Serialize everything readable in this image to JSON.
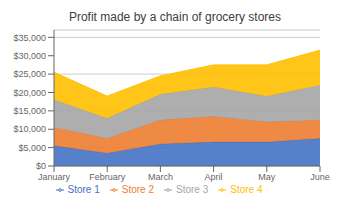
{
  "chart_data": {
    "type": "area",
    "title": "Profit made by a chain of grocery stores",
    "categories": [
      "January",
      "February",
      "March",
      "April",
      "May",
      "June"
    ],
    "series": [
      {
        "name": "Store 1",
        "color": "#4472c4",
        "values": [
          5500,
          3500,
          6000,
          6500,
          6500,
          7500
        ]
      },
      {
        "name": "Store 2",
        "color": "#ed7d31",
        "values": [
          5000,
          4000,
          6500,
          7000,
          5500,
          5000
        ]
      },
      {
        "name": "Store 3",
        "color": "#a5a5a5",
        "values": [
          7500,
          5500,
          7000,
          8000,
          7000,
          9500
        ]
      },
      {
        "name": "Store 4",
        "color": "#ffc000",
        "values": [
          7500,
          6000,
          5000,
          6000,
          8500,
          9500
        ]
      }
    ],
    "stacked": true,
    "ylim": [
      0,
      37000
    ],
    "yticks": [
      {
        "value": 0,
        "label": "$0"
      },
      {
        "value": 5000,
        "label": "$5,000"
      },
      {
        "value": 10000,
        "label": "$10,000"
      },
      {
        "value": 15000,
        "label": "$15,000"
      },
      {
        "value": 20000,
        "label": "$20,000"
      },
      {
        "value": 25000,
        "label": "$25,000"
      },
      {
        "value": 30000,
        "label": "$30,000"
      },
      {
        "value": 35000,
        "label": "$35,000"
      }
    ],
    "grid": true,
    "legend": "bottom"
  }
}
